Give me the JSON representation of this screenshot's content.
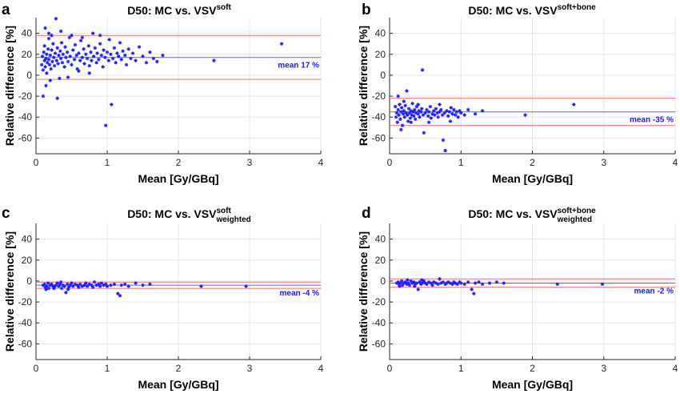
{
  "chart_data": [
    {
      "type": "scatter",
      "panel": "a",
      "title": {
        "main": "D50: MC vs. VSV",
        "sup": "soft",
        "sub": ""
      },
      "xlabel": "Mean [Gy/GBq]",
      "ylabel": "Relative difference [%]",
      "xlim": [
        0,
        4
      ],
      "ylim": [
        -75,
        55
      ],
      "xticks": [
        "0",
        "1",
        "2",
        "3",
        "4"
      ],
      "yticks": [
        "40",
        "20",
        "0",
        "-20",
        "-40",
        "-60"
      ],
      "mean": 17,
      "loa": [
        -4,
        38
      ],
      "mean_label": "mean 17 %",
      "grid": true,
      "points": [
        [
          0.08,
          10
        ],
        [
          0.09,
          18
        ],
        [
          0.1,
          5
        ],
        [
          0.11,
          22
        ],
        [
          0.12,
          14
        ],
        [
          0.12,
          28
        ],
        [
          0.13,
          8
        ],
        [
          0.14,
          16
        ],
        [
          0.15,
          20
        ],
        [
          0.15,
          2
        ],
        [
          0.16,
          12
        ],
        [
          0.17,
          25
        ],
        [
          0.18,
          15
        ],
        [
          0.18,
          35
        ],
        [
          0.19,
          10
        ],
        [
          0.2,
          19
        ],
        [
          0.21,
          6
        ],
        [
          0.22,
          24
        ],
        [
          0.23,
          13
        ],
        [
          0.24,
          30
        ],
        [
          0.25,
          17
        ],
        [
          0.26,
          9
        ],
        [
          0.27,
          21
        ],
        [
          0.28,
          54
        ],
        [
          0.29,
          14
        ],
        [
          0.3,
          26
        ],
        [
          0.31,
          11
        ],
        [
          0.32,
          19
        ],
        [
          0.33,
          -3
        ],
        [
          0.34,
          23
        ],
        [
          0.35,
          16
        ],
        [
          0.36,
          31
        ],
        [
          0.37,
          12
        ],
        [
          0.38,
          20
        ],
        [
          0.4,
          8
        ],
        [
          0.41,
          27
        ],
        [
          0.42,
          17
        ],
        [
          0.44,
          22
        ],
        [
          0.45,
          13
        ],
        [
          0.47,
          36
        ],
        [
          0.48,
          18
        ],
        [
          0.5,
          10
        ],
        [
          0.52,
          24
        ],
        [
          0.54,
          15
        ],
        [
          0.55,
          29
        ],
        [
          0.57,
          19
        ],
        [
          0.58,
          6
        ],
        [
          0.6,
          21
        ],
        [
          0.62,
          14
        ],
        [
          0.63,
          33
        ],
        [
          0.65,
          17
        ],
        [
          0.67,
          25
        ],
        [
          0.68,
          11
        ],
        [
          0.7,
          20
        ],
        [
          0.72,
          16
        ],
        [
          0.74,
          28
        ],
        [
          0.75,
          9
        ],
        [
          0.77,
          22
        ],
        [
          0.78,
          14
        ],
        [
          0.8,
          40
        ],
        [
          0.81,
          18
        ],
        [
          0.83,
          26
        ],
        [
          0.85,
          12
        ],
        [
          0.86,
          21
        ],
        [
          0.88,
          15
        ],
        [
          0.9,
          30
        ],
        [
          0.92,
          19
        ],
        [
          0.94,
          8
        ],
        [
          0.95,
          24
        ],
        [
          0.97,
          17
        ],
        [
          0.98,
          -48
        ],
        [
          1.0,
          22
        ],
        [
          1.02,
          14
        ],
        [
          1.03,
          34
        ],
        [
          1.05,
          20
        ],
        [
          1.06,
          -28
        ],
        [
          1.08,
          16
        ],
        [
          1.1,
          26
        ],
        [
          1.12,
          12
        ],
        [
          1.14,
          21
        ],
        [
          1.16,
          18
        ],
        [
          1.18,
          31
        ],
        [
          1.2,
          15
        ],
        [
          1.22,
          23
        ],
        [
          1.25,
          19
        ],
        [
          1.27,
          10
        ],
        [
          1.3,
          25
        ],
        [
          1.33,
          16
        ],
        [
          1.36,
          21
        ],
        [
          1.4,
          14
        ],
        [
          1.45,
          27
        ],
        [
          1.5,
          18
        ],
        [
          1.55,
          12
        ],
        [
          1.6,
          22
        ],
        [
          1.65,
          16
        ],
        [
          1.7,
          13
        ],
        [
          1.78,
          19
        ],
        [
          2.5,
          14
        ],
        [
          3.45,
          30
        ],
        [
          0.1,
          -20
        ],
        [
          0.14,
          -10
        ],
        [
          0.2,
          -5
        ],
        [
          0.3,
          -22
        ],
        [
          0.45,
          -2
        ],
        [
          0.6,
          4
        ],
        [
          0.75,
          2
        ],
        [
          0.13,
          45
        ],
        [
          0.18,
          40
        ],
        [
          0.22,
          38
        ],
        [
          0.35,
          42
        ],
        [
          0.5,
          38
        ],
        [
          0.65,
          36
        ],
        [
          0.9,
          38
        ]
      ]
    },
    {
      "type": "scatter",
      "panel": "b",
      "title": {
        "main": "D50: MC vs. VSV",
        "sup": "soft+bone",
        "sub": ""
      },
      "xlabel": "Mean [Gy/GBq]",
      "ylabel": "Relative difference [%]",
      "xlim": [
        0,
        4
      ],
      "ylim": [
        -75,
        55
      ],
      "xticks": [
        "0",
        "1",
        "2",
        "3",
        "4"
      ],
      "yticks": [
        "40",
        "20",
        "0",
        "-20",
        "-40",
        "-60"
      ],
      "mean": -35,
      "loa": [
        -48,
        -22
      ],
      "mean_label": "mean -35 %",
      "grid": true,
      "points": [
        [
          0.08,
          -30
        ],
        [
          0.09,
          -40
        ],
        [
          0.1,
          -36
        ],
        [
          0.11,
          -45
        ],
        [
          0.12,
          -33
        ],
        [
          0.13,
          -38
        ],
        [
          0.14,
          -28
        ],
        [
          0.15,
          -42
        ],
        [
          0.16,
          -35
        ],
        [
          0.17,
          -31
        ],
        [
          0.18,
          -48
        ],
        [
          0.19,
          -37
        ],
        [
          0.2,
          -34
        ],
        [
          0.21,
          -40
        ],
        [
          0.22,
          -29
        ],
        [
          0.23,
          -36
        ],
        [
          0.24,
          -15
        ],
        [
          0.25,
          -38
        ],
        [
          0.26,
          -44
        ],
        [
          0.27,
          -32
        ],
        [
          0.28,
          -36
        ],
        [
          0.29,
          -41
        ],
        [
          0.3,
          -34
        ],
        [
          0.31,
          -38
        ],
        [
          0.32,
          -27
        ],
        [
          0.33,
          -35
        ],
        [
          0.34,
          -39
        ],
        [
          0.35,
          -33
        ],
        [
          0.36,
          -42
        ],
        [
          0.37,
          -36
        ],
        [
          0.38,
          -30
        ],
        [
          0.4,
          -37
        ],
        [
          0.41,
          -34
        ],
        [
          0.42,
          -40
        ],
        [
          0.44,
          -35
        ],
        [
          0.45,
          -32
        ],
        [
          0.46,
          5
        ],
        [
          0.47,
          -38
        ],
        [
          0.48,
          -55
        ],
        [
          0.5,
          -36
        ],
        [
          0.52,
          -33
        ],
        [
          0.54,
          -39
        ],
        [
          0.55,
          -35
        ],
        [
          0.57,
          -30
        ],
        [
          0.58,
          -41
        ],
        [
          0.6,
          -37
        ],
        [
          0.62,
          -34
        ],
        [
          0.63,
          -38
        ],
        [
          0.65,
          -32
        ],
        [
          0.67,
          -36
        ],
        [
          0.68,
          -40
        ],
        [
          0.7,
          -35
        ],
        [
          0.72,
          -33
        ],
        [
          0.74,
          -38
        ],
        [
          0.75,
          -62
        ],
        [
          0.77,
          -36
        ],
        [
          0.78,
          -72
        ],
        [
          0.8,
          -34
        ],
        [
          0.82,
          -39
        ],
        [
          0.84,
          -35
        ],
        [
          0.86,
          -31
        ],
        [
          0.88,
          -37
        ],
        [
          0.9,
          -33
        ],
        [
          0.92,
          -38
        ],
        [
          0.94,
          -35
        ],
        [
          0.96,
          -40
        ],
        [
          0.98,
          -34
        ],
        [
          1.0,
          -36
        ],
        [
          1.05,
          -38
        ],
        [
          1.1,
          -33
        ],
        [
          1.2,
          -37
        ],
        [
          1.3,
          -34
        ],
        [
          1.9,
          -38
        ],
        [
          2.58,
          -28
        ],
        [
          0.12,
          -20
        ],
        [
          0.16,
          -52
        ],
        [
          0.2,
          -25
        ],
        [
          0.3,
          -45
        ],
        [
          0.4,
          -28
        ],
        [
          0.55,
          -45
        ],
        [
          0.7,
          -28
        ],
        [
          0.85,
          -44
        ]
      ]
    },
    {
      "type": "scatter",
      "panel": "c",
      "title": {
        "main": "D50: MC vs. VSV",
        "sup": "soft",
        "sub": "weighted"
      },
      "xlabel": "Mean [Gy/GBq]",
      "ylabel": "Relative difference [%]",
      "xlim": [
        0,
        4
      ],
      "ylim": [
        -75,
        55
      ],
      "xticks": [
        "0",
        "1",
        "2",
        "3",
        "4"
      ],
      "yticks": [
        "40",
        "20",
        "0",
        "-20",
        "-40",
        "-60"
      ],
      "mean": -4,
      "loa": [
        -7,
        -1
      ],
      "mean_label": "mean -4 %",
      "grid": true,
      "points": [
        [
          0.1,
          -4
        ],
        [
          0.12,
          -3
        ],
        [
          0.13,
          -6
        ],
        [
          0.15,
          -5
        ],
        [
          0.17,
          -2
        ],
        [
          0.18,
          -7
        ],
        [
          0.2,
          -4
        ],
        [
          0.22,
          -3
        ],
        [
          0.24,
          -5
        ],
        [
          0.26,
          -6
        ],
        [
          0.28,
          -4
        ],
        [
          0.3,
          -2
        ],
        [
          0.32,
          -5
        ],
        [
          0.34,
          -3
        ],
        [
          0.36,
          -7
        ],
        [
          0.38,
          -4
        ],
        [
          0.4,
          -5
        ],
        [
          0.42,
          -11
        ],
        [
          0.44,
          -3
        ],
        [
          0.46,
          -6
        ],
        [
          0.48,
          -4
        ],
        [
          0.5,
          -2
        ],
        [
          0.52,
          -5
        ],
        [
          0.55,
          -3
        ],
        [
          0.58,
          -4
        ],
        [
          0.6,
          -6
        ],
        [
          0.62,
          -3
        ],
        [
          0.65,
          -5
        ],
        [
          0.68,
          -4
        ],
        [
          0.7,
          -2
        ],
        [
          0.72,
          -5
        ],
        [
          0.75,
          -3
        ],
        [
          0.78,
          -4
        ],
        [
          0.8,
          -6
        ],
        [
          0.82,
          -1
        ],
        [
          0.85,
          -4
        ],
        [
          0.88,
          -3
        ],
        [
          0.9,
          -5
        ],
        [
          0.92,
          -2
        ],
        [
          0.95,
          -4
        ],
        [
          0.98,
          -3
        ],
        [
          1.0,
          -5
        ],
        [
          1.05,
          -4
        ],
        [
          1.1,
          -3
        ],
        [
          1.15,
          -12
        ],
        [
          1.18,
          -14
        ],
        [
          1.2,
          -4
        ],
        [
          1.25,
          -3
        ],
        [
          1.3,
          -5
        ],
        [
          1.4,
          -2
        ],
        [
          1.5,
          -4
        ],
        [
          1.6,
          -3
        ],
        [
          2.32,
          -5
        ],
        [
          2.95,
          -5
        ],
        [
          0.14,
          -8
        ],
        [
          0.25,
          -7
        ],
        [
          0.35,
          -1
        ],
        [
          0.45,
          -8
        ]
      ]
    },
    {
      "type": "scatter",
      "panel": "d",
      "title": {
        "main": "D50: MC vs. VSV",
        "sup": "soft+bone",
        "sub": "weighted"
      },
      "xlabel": "Mean [Gy/GBq]",
      "ylabel": "Relative difference [%]",
      "xlim": [
        0,
        4
      ],
      "ylim": [
        -75,
        55
      ],
      "xticks": [
        "0",
        "1",
        "2",
        "3",
        "4"
      ],
      "yticks": [
        "40",
        "20",
        "0",
        "-20",
        "-40",
        "-60"
      ],
      "mean": -2,
      "loa": [
        -6,
        2
      ],
      "mean_label": "mean -2 %",
      "grid": true,
      "points": [
        [
          0.1,
          -2
        ],
        [
          0.12,
          -1
        ],
        [
          0.13,
          -3
        ],
        [
          0.15,
          -2
        ],
        [
          0.17,
          0
        ],
        [
          0.18,
          -4
        ],
        [
          0.2,
          -2
        ],
        [
          0.22,
          -1
        ],
        [
          0.24,
          -3
        ],
        [
          0.26,
          -2
        ],
        [
          0.28,
          -4
        ],
        [
          0.3,
          0
        ],
        [
          0.32,
          -2
        ],
        [
          0.34,
          -1
        ],
        [
          0.36,
          -3
        ],
        [
          0.38,
          -2
        ],
        [
          0.4,
          -8
        ],
        [
          0.42,
          -1
        ],
        [
          0.44,
          -3
        ],
        [
          0.46,
          -2
        ],
        [
          0.48,
          0
        ],
        [
          0.5,
          -2
        ],
        [
          0.52,
          -3
        ],
        [
          0.55,
          -1
        ],
        [
          0.58,
          -2
        ],
        [
          0.6,
          -4
        ],
        [
          0.62,
          -1
        ],
        [
          0.65,
          -2
        ],
        [
          0.68,
          -3
        ],
        [
          0.7,
          2
        ],
        [
          0.72,
          -2
        ],
        [
          0.75,
          -1
        ],
        [
          0.78,
          -3
        ],
        [
          0.8,
          -2
        ],
        [
          0.82,
          -1
        ],
        [
          0.85,
          -2
        ],
        [
          0.88,
          -3
        ],
        [
          0.9,
          -1
        ],
        [
          0.92,
          -2
        ],
        [
          0.95,
          -3
        ],
        [
          0.98,
          -1
        ],
        [
          1.0,
          -2
        ],
        [
          1.05,
          -3
        ],
        [
          1.1,
          -1
        ],
        [
          1.15,
          -8
        ],
        [
          1.18,
          -12
        ],
        [
          1.2,
          -2
        ],
        [
          1.25,
          -1
        ],
        [
          1.3,
          -3
        ],
        [
          1.4,
          -2
        ],
        [
          1.5,
          -1
        ],
        [
          1.6,
          -2
        ],
        [
          2.35,
          -3
        ],
        [
          2.98,
          -3
        ],
        [
          0.14,
          -5
        ],
        [
          0.25,
          1
        ],
        [
          0.35,
          -5
        ],
        [
          0.45,
          1
        ]
      ]
    }
  ]
}
